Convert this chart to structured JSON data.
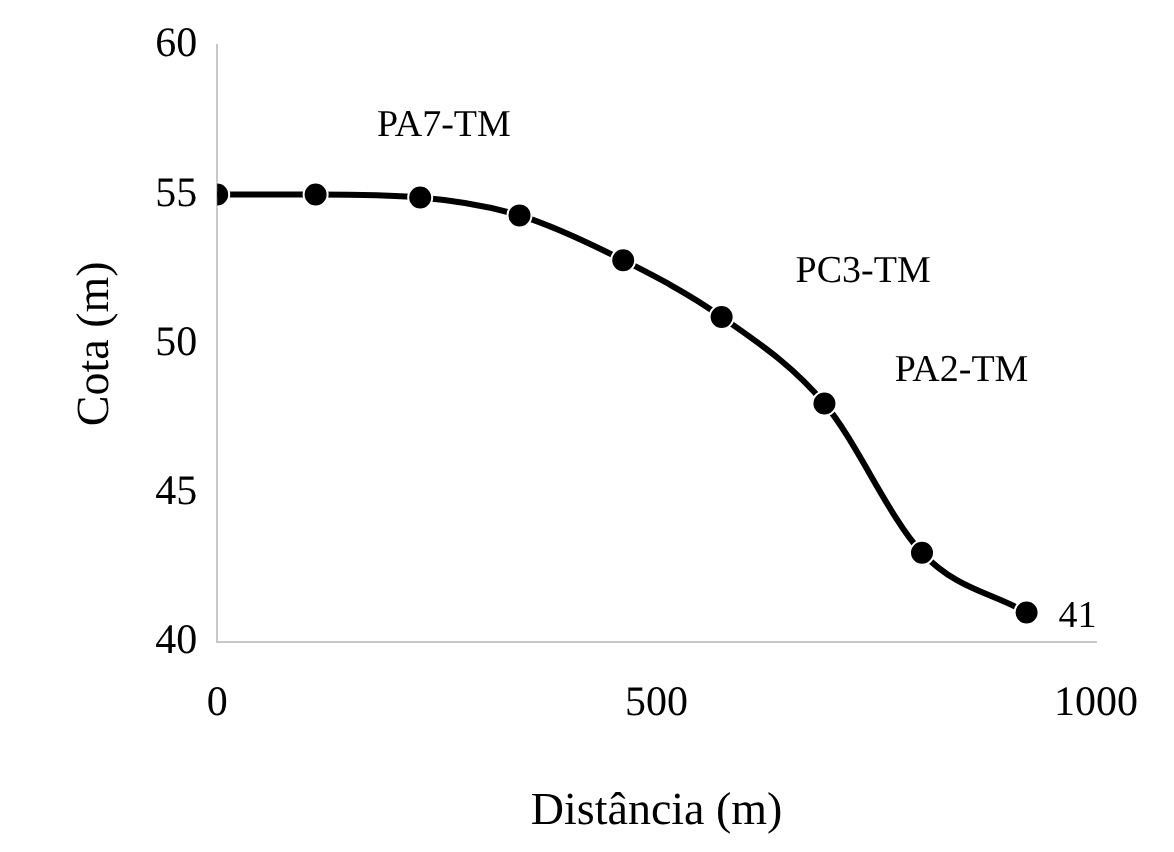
{
  "chart_data": {
    "type": "line",
    "xlabel": "Distância (m)",
    "ylabel": "Cota (m)",
    "x": [
      0,
      112,
      231,
      344,
      462,
      574,
      691,
      802,
      921
    ],
    "series": [
      {
        "color": "#000000",
        "values": [
          55,
          55,
          54.9,
          54.3,
          52.8,
          50.9,
          48,
          43,
          41
        ],
        "value_labels": [
          null,
          null,
          null,
          null,
          null,
          null,
          null,
          null,
          "41"
        ]
      }
    ],
    "xlim": [
      0,
      1000
    ],
    "xticks": [
      0,
      500,
      1000
    ],
    "ylim": [
      40,
      60
    ],
    "yticks": [
      40,
      45,
      50,
      55,
      60
    ],
    "grid": false,
    "legend": false,
    "marker": "circle",
    "line_style": "solid",
    "annotations": [
      "PA7-TM",
      "PC3-TM",
      "PA2-TM"
    ]
  }
}
